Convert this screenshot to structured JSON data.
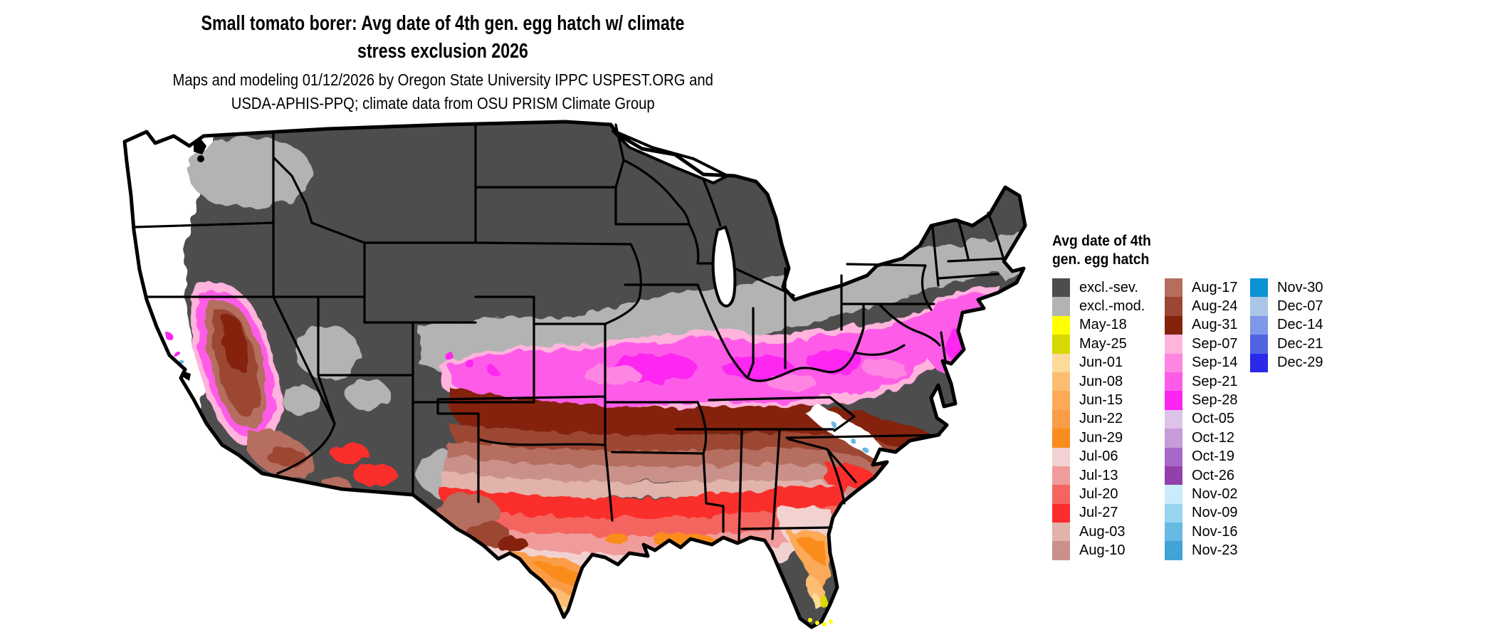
{
  "title": {
    "line1": "Small tomato borer: Avg date of 4th gen. egg hatch w/ climate",
    "line2": "stress exclusion 2026"
  },
  "subtitle": {
    "line1": "Maps and modeling 01/12/2026 by Oregon State University IPPC USPEST.ORG and",
    "line2": "USDA-APHIS-PPQ; climate data from OSU PRISM Climate Group"
  },
  "legend": {
    "title_line1": "Avg date of 4th",
    "title_line2": "gen. egg hatch",
    "columns": [
      {
        "entries": [
          {
            "label": "excl.-sev.",
            "color": "#4d4d4d"
          },
          {
            "label": "excl.-mod.",
            "color": "#b3b3b3"
          },
          {
            "label": "May-18",
            "color": "#ffff00"
          },
          {
            "label": "May-25",
            "color": "#d9d800"
          },
          {
            "label": "Jun-01",
            "color": "#fdd99a"
          },
          {
            "label": "Jun-08",
            "color": "#fcbd72"
          },
          {
            "label": "Jun-15",
            "color": "#fcaa58"
          },
          {
            "label": "Jun-22",
            "color": "#fb9c46"
          },
          {
            "label": "Jun-29",
            "color": "#fa8c1e"
          },
          {
            "label": "Jul-06",
            "color": "#f2d2d0"
          },
          {
            "label": "Jul-13",
            "color": "#f19c9c"
          },
          {
            "label": "Jul-20",
            "color": "#f4655f"
          },
          {
            "label": "Jul-27",
            "color": "#fa2d2c"
          },
          {
            "label": "Aug-03",
            "color": "#e1b3ab"
          },
          {
            "label": "Aug-10",
            "color": "#c9918a"
          }
        ]
      },
      {
        "entries": [
          {
            "label": "Aug-17",
            "color": "#b56e5e"
          },
          {
            "label": "Aug-24",
            "color": "#9c4733"
          },
          {
            "label": "Aug-31",
            "color": "#84220e"
          },
          {
            "label": "Sep-07",
            "color": "#ffb3dd"
          },
          {
            "label": "Sep-14",
            "color": "#ff85e2"
          },
          {
            "label": "Sep-21",
            "color": "#fe5ce8"
          },
          {
            "label": "Sep-28",
            "color": "#fe25f1"
          },
          {
            "label": "Oct-05",
            "color": "#ddc3e7"
          },
          {
            "label": "Oct-12",
            "color": "#c79bd9"
          },
          {
            "label": "Oct-19",
            "color": "#a768c7"
          },
          {
            "label": "Oct-26",
            "color": "#9340ab"
          },
          {
            "label": "Nov-02",
            "color": "#c9ecfa"
          },
          {
            "label": "Nov-09",
            "color": "#96d4ef"
          },
          {
            "label": "Nov-16",
            "color": "#66bae2"
          },
          {
            "label": "Nov-23",
            "color": "#41a3d7"
          }
        ]
      },
      {
        "entries": [
          {
            "label": "Nov-30",
            "color": "#0a94d3"
          },
          {
            "label": "Dec-07",
            "color": "#a9c6e6"
          },
          {
            "label": "Dec-14",
            "color": "#7e97e8"
          },
          {
            "label": "Dec-21",
            "color": "#5064e2"
          },
          {
            "label": "Dec-29",
            "color": "#2a28e9"
          }
        ]
      }
    ]
  },
  "palette": {
    "background": "#ffffff",
    "border": "#000000",
    "excl_sev": "#4d4d4d",
    "excl_mod": "#b3b3b3",
    "na_white": "#ffffff",
    "may18": "#ffff00",
    "may25": "#d9d800",
    "jun01": "#fdd99a",
    "jun08": "#fcbd72",
    "jun15": "#fcaa58",
    "jun22": "#fb9c46",
    "jun29": "#fa8c1e",
    "jul06": "#f2d2d0",
    "jul13": "#f19c9c",
    "jul20": "#f4655f",
    "jul27": "#fa2d2c",
    "aug03": "#e1b3ab",
    "aug10": "#c9918a",
    "aug17": "#b56e5e",
    "aug24": "#9c4733",
    "aug31": "#84220e",
    "sep07": "#ffb3dd",
    "sep14": "#ff85e2",
    "sep21": "#fe5ce8",
    "sep28": "#fe25f1",
    "nov16": "#66bae2"
  }
}
